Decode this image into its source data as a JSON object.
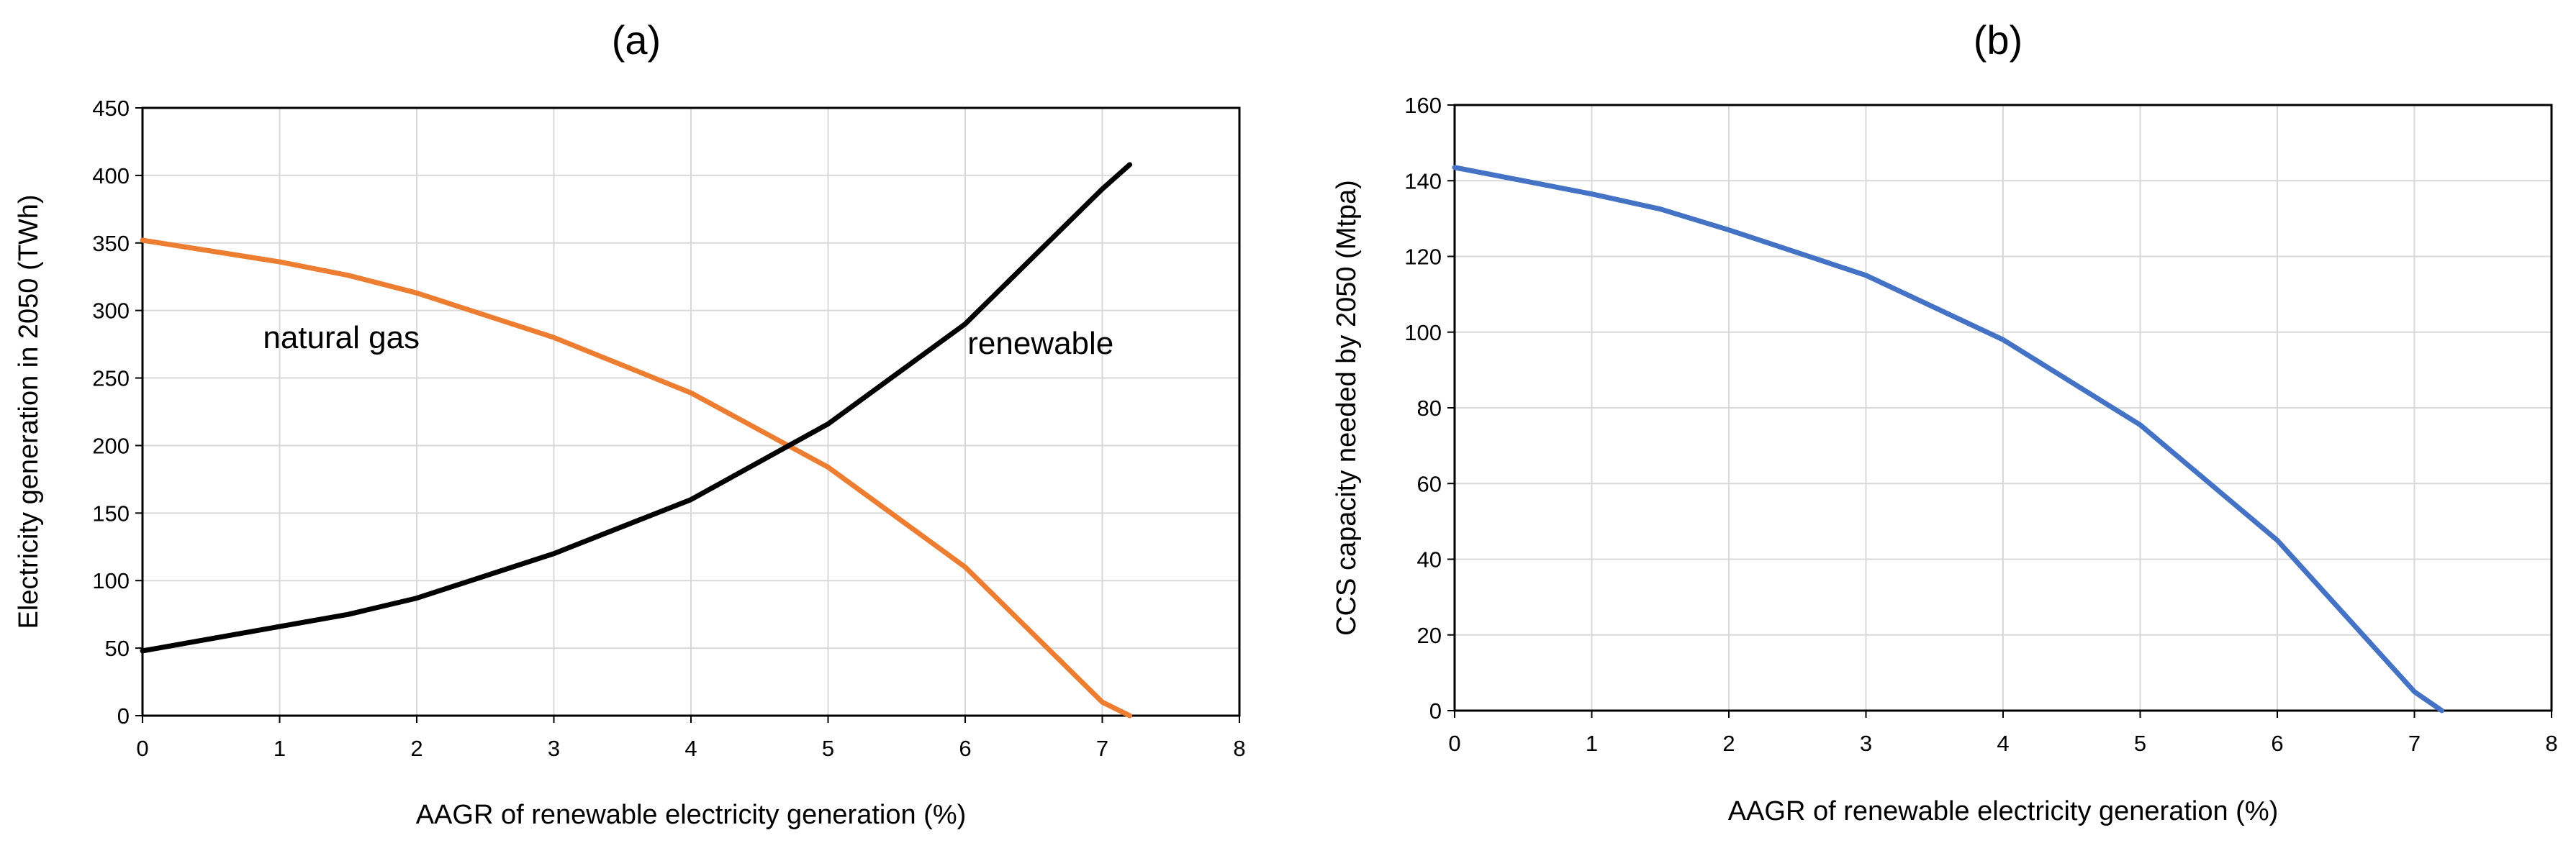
{
  "chart_data": [
    {
      "type": "line",
      "title": "(a)",
      "xlabel": "AAGR of renewable electricity generation (%)",
      "ylabel": "Electricity generation in 2050 (TWh)",
      "xlim": [
        0,
        8
      ],
      "ylim": [
        0,
        450
      ],
      "xticks": [
        0,
        1,
        2,
        3,
        4,
        5,
        6,
        7,
        8
      ],
      "yticks": [
        0,
        50,
        100,
        150,
        200,
        250,
        300,
        350,
        400,
        450
      ],
      "grid": true,
      "legend": "none",
      "series": [
        {
          "name": "natural gas",
          "color": "#ED7D31",
          "x": [
            0,
            1,
            1.5,
            2,
            3,
            4,
            5,
            6,
            7,
            7.2
          ],
          "y": [
            352,
            336,
            326,
            313,
            280,
            239,
            184,
            110,
            10,
            0
          ]
        },
        {
          "name": "renewable",
          "color": "#000000",
          "x": [
            0,
            1,
            1.5,
            2,
            3,
            4,
            5,
            6,
            7,
            7.2
          ],
          "y": [
            48,
            66,
            75,
            87,
            120,
            160,
            216,
            290,
            390,
            408
          ]
        }
      ],
      "annotations": [
        "natural gas",
        "renewable"
      ]
    },
    {
      "type": "line",
      "title": "(b)",
      "xlabel": "AAGR of renewable electricity generation (%)",
      "ylabel": "CCS capacity needed by 2050 (Mtpa)",
      "xlim": [
        0,
        8
      ],
      "ylim": [
        0,
        160
      ],
      "xticks": [
        0,
        1,
        2,
        3,
        4,
        5,
        6,
        7,
        8
      ],
      "yticks": [
        0,
        20,
        40,
        60,
        80,
        100,
        120,
        140,
        160
      ],
      "grid": true,
      "legend": "none",
      "series": [
        {
          "name": "",
          "color": "#4472C4",
          "x": [
            0,
            1,
            1.5,
            2,
            3,
            4,
            5,
            6,
            7,
            7.2
          ],
          "y": [
            143.5,
            136.5,
            132.5,
            127,
            115,
            98,
            75.5,
            45,
            5,
            0
          ]
        }
      ]
    }
  ]
}
